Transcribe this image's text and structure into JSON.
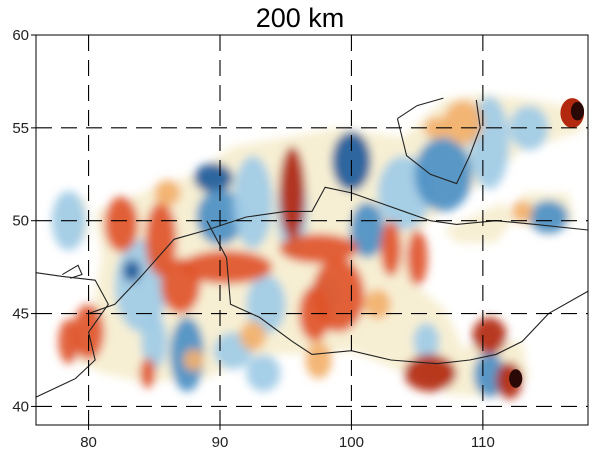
{
  "title": "200 km",
  "axes": {
    "x": {
      "min": 76,
      "max": 118,
      "ticks": [
        80,
        90,
        100,
        110
      ]
    },
    "y": {
      "min": 39,
      "max": 60,
      "ticks": [
        40,
        45,
        50,
        55,
        60
      ]
    },
    "tick_labels_x": [
      "80",
      "90",
      "100",
      "110"
    ],
    "tick_labels_y": [
      "40",
      "45",
      "50",
      "55",
      "60"
    ],
    "grid": "dashed"
  },
  "colors": {
    "strong_slow": "#b2290f",
    "slow": "#e0552a",
    "weak_slow": "#f2b06a",
    "neutral": "#f7efd3",
    "weak_fast": "#9ecbe6",
    "fast": "#4a8fc4",
    "strong_fast": "#1d5a9a",
    "extreme_slow": "#2a0806"
  }
}
